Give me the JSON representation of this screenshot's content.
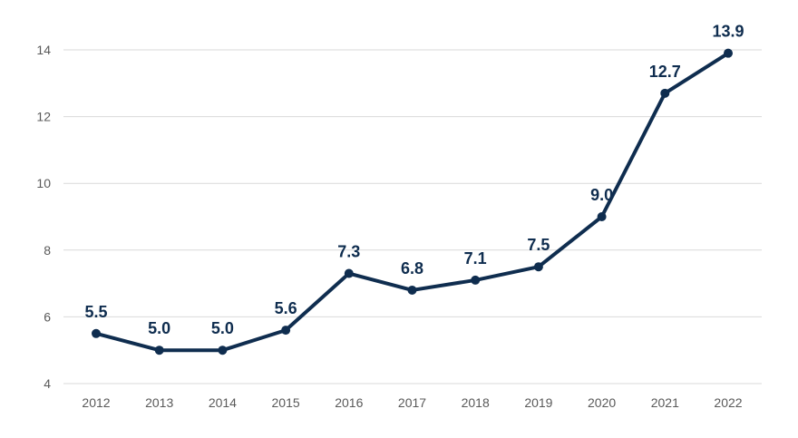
{
  "chart_data": {
    "type": "line",
    "title": "",
    "xlabel": "",
    "ylabel": "",
    "categories": [
      "2012",
      "2013",
      "2014",
      "2015",
      "2016",
      "2017",
      "2018",
      "2019",
      "2020",
      "2021",
      "2022"
    ],
    "series": [
      {
        "values": [
          5.5,
          5.0,
          5.0,
          5.6,
          7.3,
          6.8,
          7.1,
          7.5,
          9.0,
          12.7,
          13.9
        ],
        "data_labels": [
          "5.5",
          "5.0",
          "5.0",
          "5.6",
          "7.3",
          "6.8",
          "7.1",
          "7.5",
          "9.0",
          "12.7",
          "13.9"
        ],
        "color": "#0f2d4f"
      }
    ],
    "ylim": [
      4,
      14
    ],
    "yticks": [
      4,
      6,
      8,
      10,
      12,
      14
    ],
    "grid": "horizontal",
    "legend": "none"
  }
}
